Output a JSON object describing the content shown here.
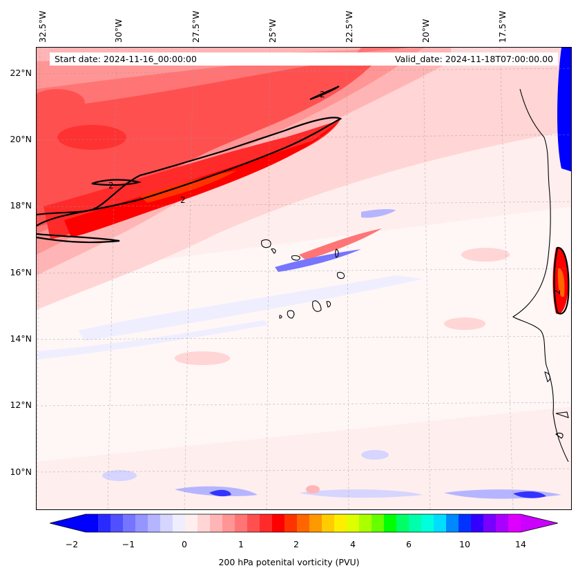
{
  "header": {
    "start_date": "Start date: 2024-11-16_00:00:00",
    "valid_date": "Valid_date: 2024-11-18T07:00:00.00"
  },
  "map": {
    "lon_labels": [
      "32.5°W",
      "30°W",
      "27.5°W",
      "25°W",
      "22.5°W",
      "20°W",
      "17.5°W"
    ],
    "lat_labels": [
      "22°N",
      "20°N",
      "18°N",
      "16°N",
      "14°N",
      "12°N",
      "10°N"
    ],
    "contour_level": 2,
    "contour_label": "2"
  },
  "colorbar": {
    "label": "200 hPa potenital vorticity (PVU)",
    "tick_labels": [
      "−2",
      "−1",
      "0",
      "1",
      "2",
      "4",
      "6",
      "10",
      "14"
    ],
    "colors": [
      "#0000ff",
      "#2a2aff",
      "#5050ff",
      "#7575ff",
      "#9595ff",
      "#b5b5ff",
      "#d5d5ff",
      "#eeeeff",
      "#ffeeee",
      "#ffd5d5",
      "#ffb5b5",
      "#ff9595",
      "#ff7575",
      "#ff5050",
      "#ff2a2a",
      "#ff0000",
      "#ff3300",
      "#ff6600",
      "#ff9900",
      "#ffcc00",
      "#ffee00",
      "#ddff00",
      "#aaff00",
      "#66ff00",
      "#00ff00",
      "#00ff66",
      "#00ffaa",
      "#00ffdd",
      "#00ddff",
      "#0088ff",
      "#0033ff",
      "#3300ff",
      "#7700ff",
      "#aa00ff",
      "#dd00ff"
    ],
    "extend_low_color": "#0000ff",
    "extend_high_color": "#cc00ff"
  }
}
